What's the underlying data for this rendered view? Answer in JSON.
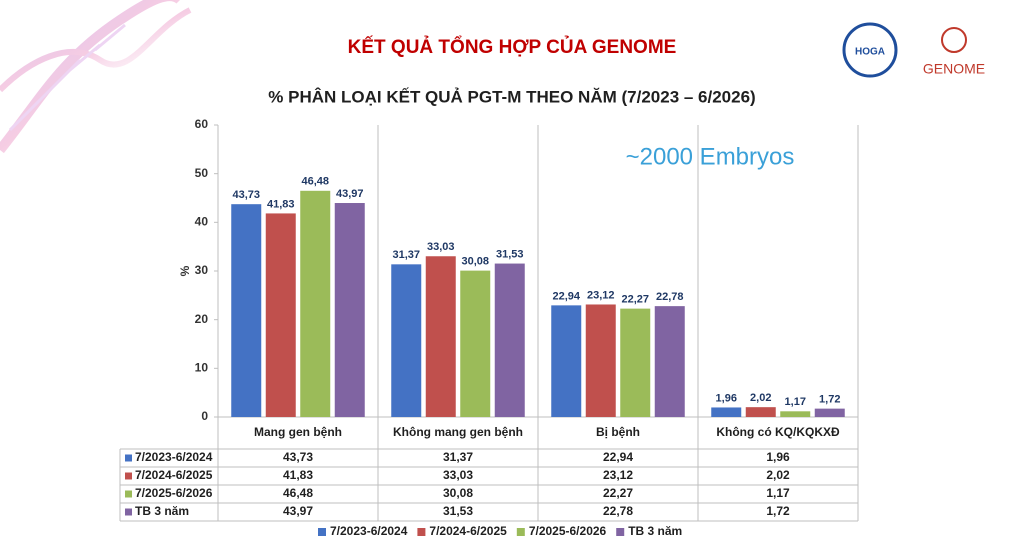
{
  "chart_data": {
    "type": "bar",
    "title": "KẾT QUẢ TỔNG HỢP CỦA GENOME",
    "subtitle": "% PHÂN LOẠI KẾT QUẢ PGT-M THEO NĂM (7/2023 – 6/2026)",
    "annotation": "~2000 Embryos",
    "y_label": "%",
    "logos": [
      "HOGA",
      "GENOME"
    ],
    "categories": [
      "Mang gen bệnh",
      "Không mang gen bệnh",
      "Bị bệnh",
      "Không có KQ/KQKXĐ"
    ],
    "series": [
      {
        "name": "7/2023-6/2024",
        "color": "#4472c4",
        "values": [
          43.73,
          31.37,
          22.94,
          1.96
        ],
        "value_labels": [
          "43,73",
          "31,37",
          "22,94",
          "1,96"
        ]
      },
      {
        "name": "7/2024-6/2025",
        "color": "#c0504d",
        "values": [
          41.83,
          33.03,
          23.12,
          2.02
        ],
        "value_labels": [
          "41,83",
          "33,03",
          "23,12",
          "2,02"
        ]
      },
      {
        "name": "7/2025-6/2026",
        "color": "#9bbb59",
        "values": [
          46.48,
          30.08,
          22.27,
          1.17
        ],
        "value_labels": [
          "46,48",
          "30,08",
          "22,27",
          "1,17"
        ]
      },
      {
        "name": "TB 3 năm",
        "color": "#8064a2",
        "values": [
          43.97,
          31.53,
          22.78,
          1.72
        ],
        "value_labels": [
          "43,97",
          "31,53",
          "22,78",
          "1,72"
        ]
      }
    ],
    "ylim": [
      0,
      60
    ],
    "yticks": [
      0,
      10,
      20,
      30,
      40,
      50,
      60
    ],
    "grid": false,
    "legend": "bottom"
  }
}
